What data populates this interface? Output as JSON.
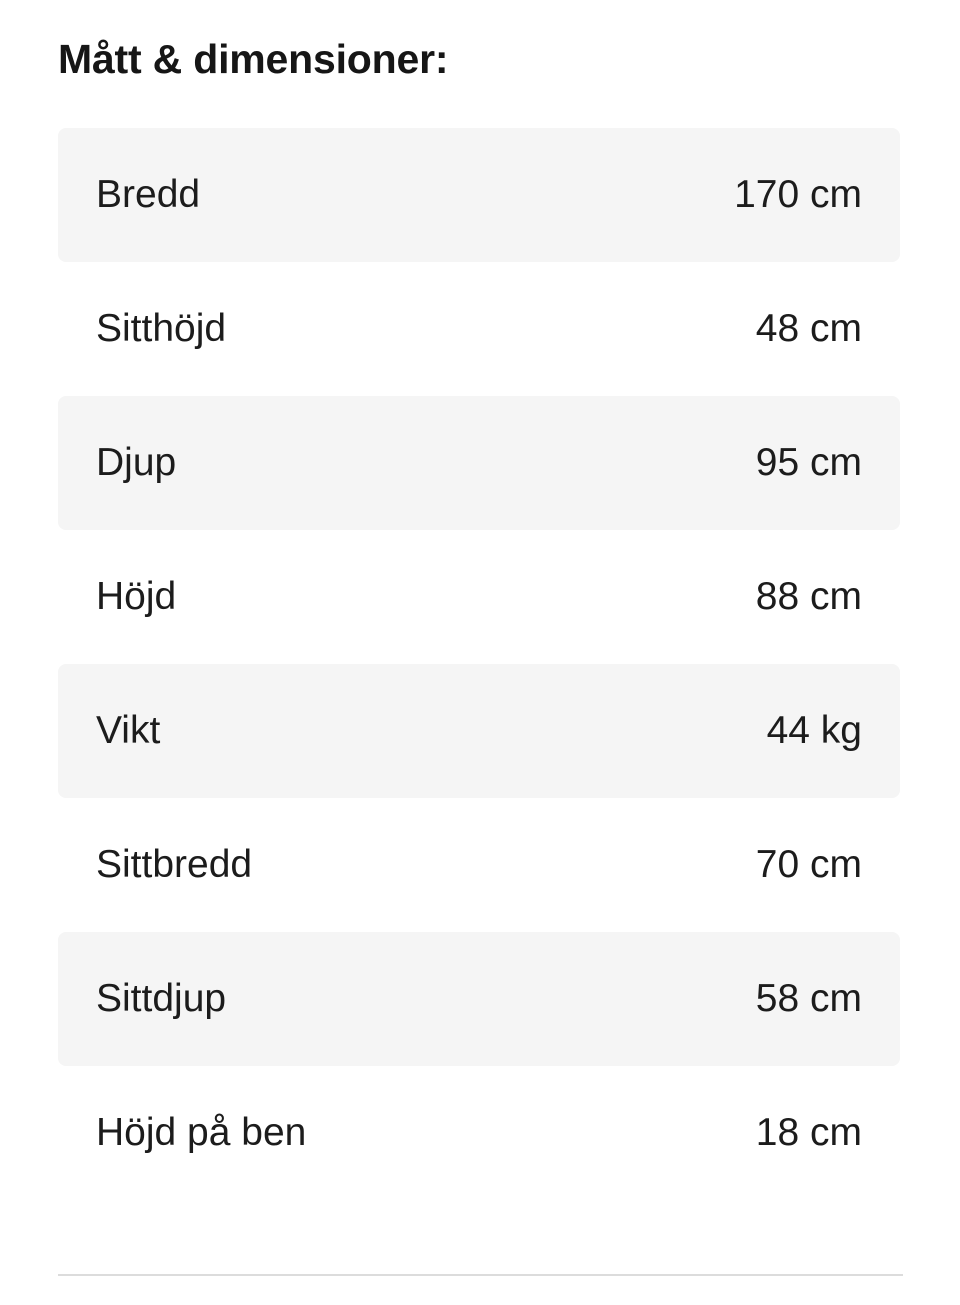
{
  "section": {
    "title": "Mått & dimensioner:"
  },
  "table": {
    "rows": [
      {
        "label": "Bredd",
        "value": "170 cm"
      },
      {
        "label": "Sitthöjd",
        "value": "48 cm"
      },
      {
        "label": "Djup",
        "value": "95 cm"
      },
      {
        "label": "Höjd",
        "value": "88 cm"
      },
      {
        "label": "Vikt",
        "value": "44 kg"
      },
      {
        "label": "Sittbredd",
        "value": "70 cm"
      },
      {
        "label": "Sittdjup",
        "value": "58 cm"
      },
      {
        "label": "Höjd på ben",
        "value": "18 cm"
      }
    ]
  },
  "colors": {
    "row_alt_bg": "#f5f5f5",
    "text": "#1c1c1c",
    "divider": "#dcdcdc"
  }
}
